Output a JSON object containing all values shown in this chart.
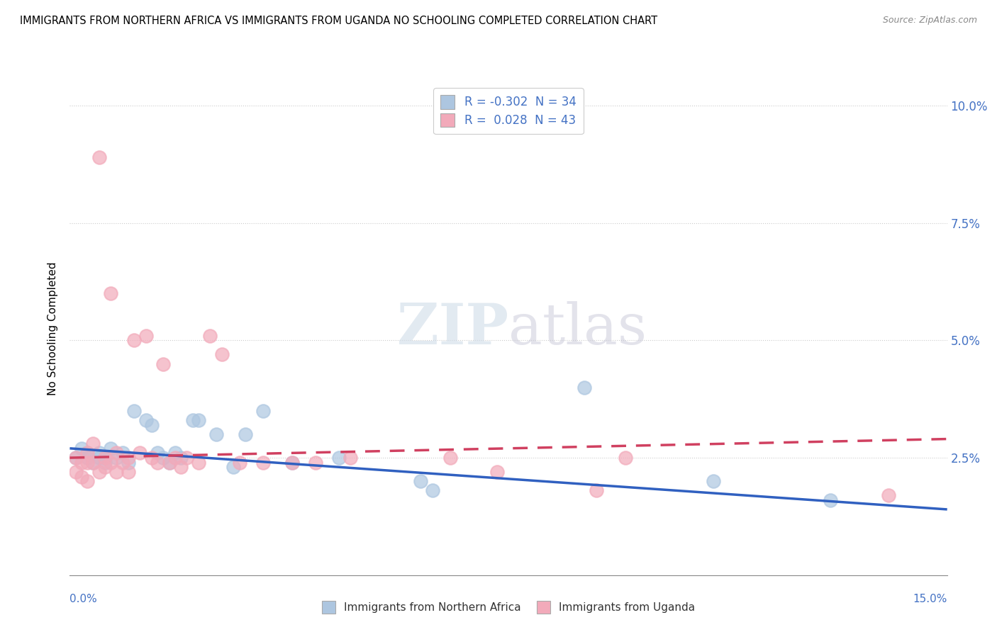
{
  "title": "IMMIGRANTS FROM NORTHERN AFRICA VS IMMIGRANTS FROM UGANDA NO SCHOOLING COMPLETED CORRELATION CHART",
  "source": "Source: ZipAtlas.com",
  "ylabel": "No Schooling Completed",
  "x_lim": [
    0.0,
    0.15
  ],
  "y_lim": [
    0.0,
    0.105
  ],
  "legend_blue_r": "-0.302",
  "legend_blue_n": "34",
  "legend_pink_r": "0.028",
  "legend_pink_n": "43",
  "blue_color": "#adc6e0",
  "pink_color": "#f2aaba",
  "blue_line_color": "#3060c0",
  "pink_line_color": "#d04060",
  "blue_points_x": [
    0.001,
    0.002,
    0.003,
    0.003,
    0.004,
    0.005,
    0.005,
    0.006,
    0.006,
    0.007,
    0.008,
    0.009,
    0.01,
    0.011,
    0.013,
    0.014,
    0.015,
    0.016,
    0.017,
    0.018,
    0.019,
    0.021,
    0.022,
    0.025,
    0.028,
    0.03,
    0.033,
    0.038,
    0.046,
    0.06,
    0.062,
    0.088,
    0.11,
    0.13
  ],
  "blue_points_y": [
    0.025,
    0.027,
    0.026,
    0.025,
    0.024,
    0.025,
    0.026,
    0.024,
    0.025,
    0.027,
    0.025,
    0.026,
    0.024,
    0.035,
    0.033,
    0.032,
    0.026,
    0.025,
    0.024,
    0.026,
    0.025,
    0.033,
    0.033,
    0.03,
    0.023,
    0.03,
    0.035,
    0.024,
    0.025,
    0.02,
    0.018,
    0.04,
    0.02,
    0.016
  ],
  "pink_points_x": [
    0.001,
    0.001,
    0.002,
    0.002,
    0.003,
    0.003,
    0.003,
    0.004,
    0.004,
    0.005,
    0.005,
    0.006,
    0.006,
    0.007,
    0.007,
    0.008,
    0.008,
    0.009,
    0.01,
    0.01,
    0.011,
    0.012,
    0.013,
    0.014,
    0.015,
    0.016,
    0.017,
    0.018,
    0.019,
    0.02,
    0.022,
    0.024,
    0.026,
    0.029,
    0.033,
    0.038,
    0.042,
    0.048,
    0.065,
    0.073,
    0.09,
    0.095,
    0.14
  ],
  "pink_points_y": [
    0.025,
    0.022,
    0.024,
    0.021,
    0.026,
    0.024,
    0.02,
    0.028,
    0.024,
    0.089,
    0.022,
    0.025,
    0.023,
    0.06,
    0.024,
    0.026,
    0.022,
    0.024,
    0.025,
    0.022,
    0.05,
    0.026,
    0.051,
    0.025,
    0.024,
    0.045,
    0.024,
    0.025,
    0.023,
    0.025,
    0.024,
    0.051,
    0.047,
    0.024,
    0.024,
    0.024,
    0.024,
    0.025,
    0.025,
    0.022,
    0.018,
    0.025,
    0.017
  ],
  "blue_line_x0": 0.0,
  "blue_line_y0": 0.027,
  "blue_line_x1": 0.15,
  "blue_line_y1": 0.014,
  "pink_line_x0": 0.0,
  "pink_line_y0": 0.025,
  "pink_line_x1": 0.15,
  "pink_line_y1": 0.029
}
